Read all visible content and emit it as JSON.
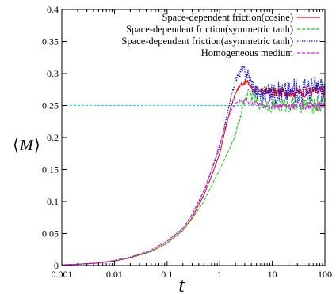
{
  "chart_data": {
    "type": "line",
    "xlabel": "t",
    "ylabel": "M",
    "x_scale": "log",
    "xlim": [
      0.001,
      100
    ],
    "ylim": [
      0,
      0.4
    ],
    "x_ticks": [
      {
        "value": 0.001,
        "label": "0.001"
      },
      {
        "value": 0.01,
        "label": "0.01"
      },
      {
        "value": 0.1,
        "label": "0.1"
      },
      {
        "value": 1,
        "label": "1"
      },
      {
        "value": 10,
        "label": "10"
      },
      {
        "value": 100,
        "label": "100"
      }
    ],
    "y_ticks": [
      {
        "value": 0,
        "label": "0"
      },
      {
        "value": 0.05,
        "label": "0.05"
      },
      {
        "value": 0.1,
        "label": "0.1"
      },
      {
        "value": 0.15,
        "label": "0.15"
      },
      {
        "value": 0.2,
        "label": "0.2"
      },
      {
        "value": 0.25,
        "label": "0.25"
      },
      {
        "value": 0.3,
        "label": "0.3"
      },
      {
        "value": 0.35,
        "label": "0.35"
      },
      {
        "value": 0.4,
        "label": "0.4"
      }
    ],
    "grid": false,
    "legend_position": "top-right",
    "reference_line": {
      "y": 0.25,
      "color": "#00e5e5",
      "style": "dashed"
    },
    "series": [
      {
        "name": "Space-dependent friction(cosine)",
        "color": "#e0101a",
        "style": "solid",
        "noise": 0.004,
        "x": [
          0.001,
          0.002,
          0.005,
          0.01,
          0.02,
          0.05,
          0.1,
          0.2,
          0.3,
          0.5,
          0.7,
          1.0,
          1.3,
          1.6,
          2.0,
          2.5,
          3.0,
          3.5,
          4.0,
          5.0,
          6.0,
          8.0,
          10,
          20,
          50,
          100
        ],
        "y": [
          0.001,
          0.002,
          0.004,
          0.007,
          0.012,
          0.022,
          0.035,
          0.055,
          0.075,
          0.11,
          0.14,
          0.175,
          0.215,
          0.245,
          0.27,
          0.283,
          0.287,
          0.285,
          0.278,
          0.273,
          0.271,
          0.272,
          0.271,
          0.271,
          0.272,
          0.272
        ]
      },
      {
        "name": "Space-dependent friction(symmetric tanh)",
        "color": "#22cc22",
        "style": "dashed",
        "noise": 0.006,
        "x": [
          0.001,
          0.002,
          0.005,
          0.01,
          0.02,
          0.05,
          0.1,
          0.2,
          0.3,
          0.5,
          0.7,
          1.0,
          1.3,
          1.6,
          2.0,
          2.5,
          3.0,
          3.5,
          4.0,
          5.0,
          6.0,
          8.0,
          10,
          20,
          50,
          100
        ],
        "y": [
          0.001,
          0.002,
          0.004,
          0.007,
          0.012,
          0.022,
          0.035,
          0.055,
          0.073,
          0.1,
          0.125,
          0.15,
          0.17,
          0.185,
          0.205,
          0.235,
          0.26,
          0.268,
          0.266,
          0.257,
          0.253,
          0.251,
          0.25,
          0.251,
          0.252,
          0.253
        ]
      },
      {
        "name": "Space-dependent friction(asymmetric tanh)",
        "color": "#1a1acc",
        "style": "dotted",
        "noise": 0.009,
        "x": [
          0.001,
          0.002,
          0.005,
          0.01,
          0.02,
          0.05,
          0.1,
          0.2,
          0.3,
          0.5,
          0.7,
          1.0,
          1.3,
          1.6,
          2.0,
          2.5,
          3.0,
          3.5,
          4.0,
          5.0,
          6.0,
          8.0,
          10,
          20,
          50,
          100
        ],
        "y": [
          0.001,
          0.002,
          0.004,
          0.008,
          0.013,
          0.024,
          0.038,
          0.058,
          0.08,
          0.115,
          0.148,
          0.185,
          0.225,
          0.26,
          0.29,
          0.303,
          0.305,
          0.298,
          0.285,
          0.272,
          0.268,
          0.268,
          0.27,
          0.272,
          0.275,
          0.277
        ]
      },
      {
        "name": "Homogeneous medium",
        "color": "#dd22dd",
        "style": "dashed",
        "noise": 0.003,
        "x": [
          0.001,
          0.002,
          0.005,
          0.01,
          0.02,
          0.05,
          0.1,
          0.2,
          0.3,
          0.5,
          0.7,
          1.0,
          1.3,
          1.6,
          2.0,
          2.5,
          3.0,
          3.5,
          4.0,
          5.0,
          6.0,
          8.0,
          10,
          20,
          50,
          100
        ],
        "y": [
          0.001,
          0.002,
          0.004,
          0.008,
          0.013,
          0.024,
          0.038,
          0.058,
          0.08,
          0.117,
          0.15,
          0.19,
          0.22,
          0.24,
          0.253,
          0.257,
          0.256,
          0.255,
          0.253,
          0.252,
          0.251,
          0.25,
          0.25,
          0.25,
          0.25,
          0.25
        ]
      }
    ]
  }
}
